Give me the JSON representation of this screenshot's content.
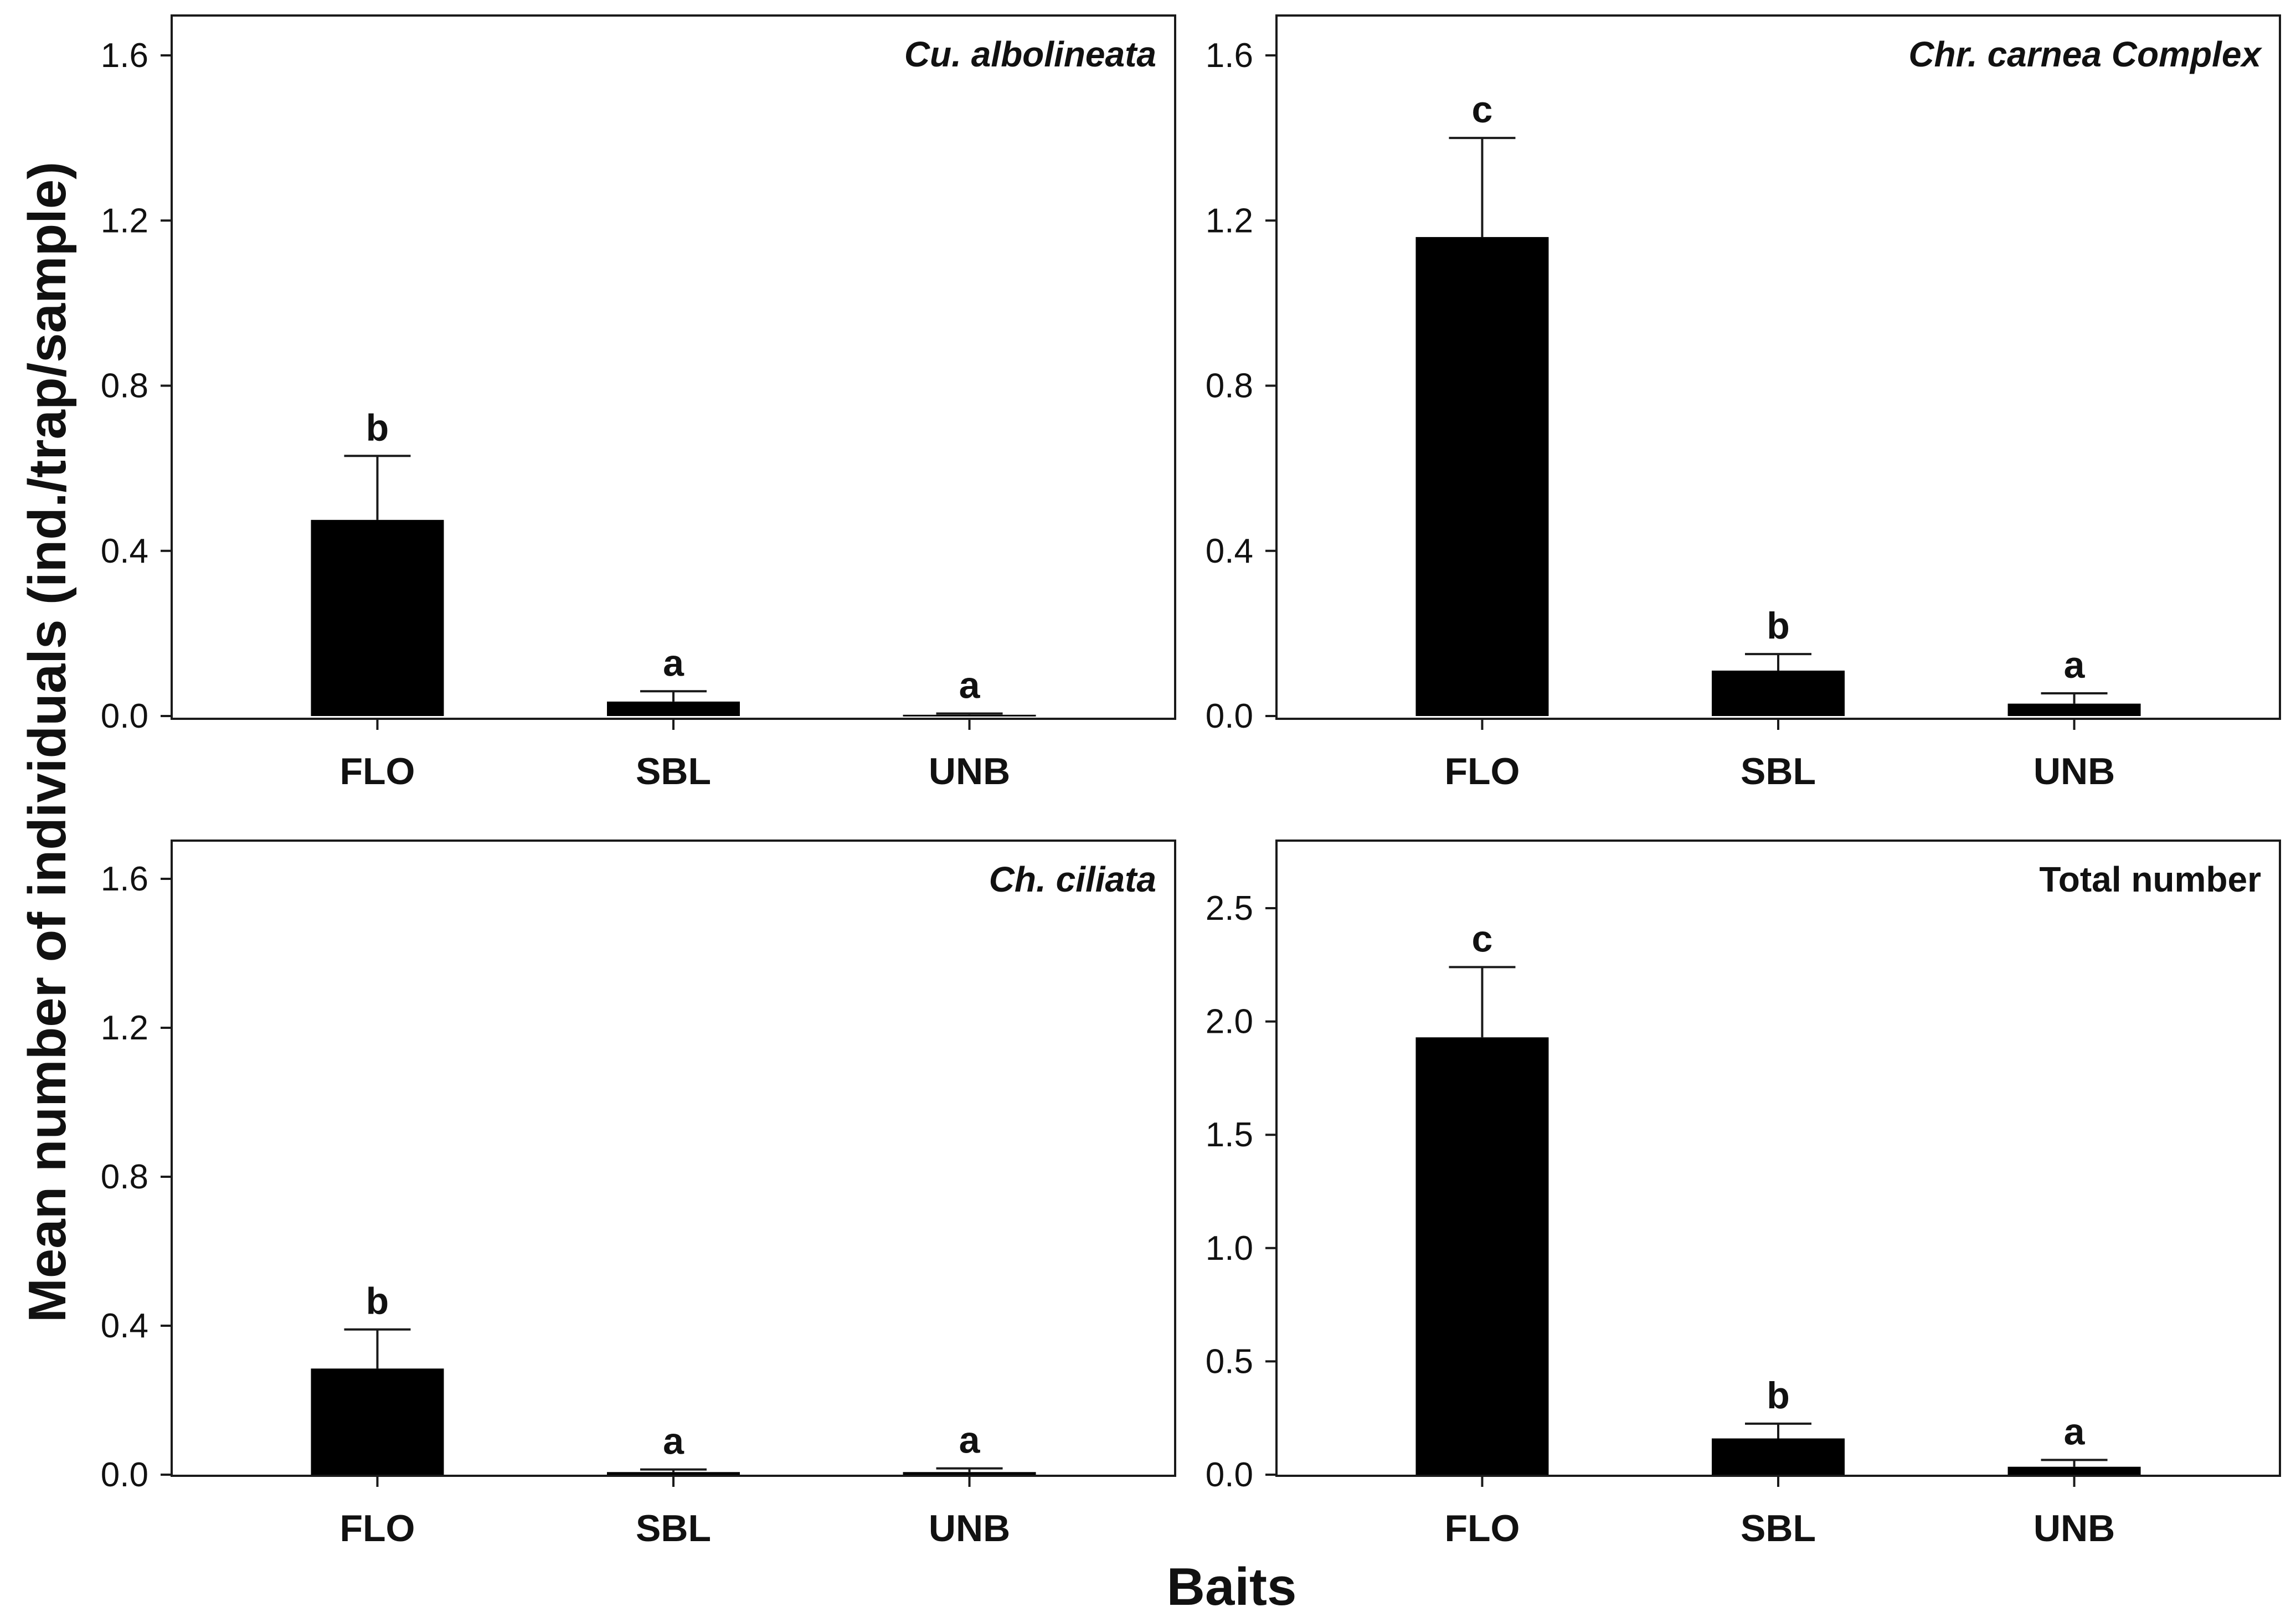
{
  "chart_data": {
    "type": "bar",
    "ylabel": "Mean number of individuals (ind./trap/sample)",
    "xlabel": "Baits",
    "categories": [
      "FLO",
      "SBL",
      "UNB"
    ],
    "colors": {
      "bar": "#000000",
      "axis": "#1a1a1a"
    },
    "panels": [
      {
        "title": "Cu. albolineata",
        "italic": true,
        "ylim": [
          0,
          1.7
        ],
        "yticks": [
          "0.0",
          "0.4",
          "0.8",
          "1.2",
          "1.6"
        ],
        "values": [
          0.475,
          0.035,
          0.003
        ],
        "errors": [
          0.155,
          0.025,
          0.003
        ],
        "letters": [
          "b",
          "a",
          "a"
        ]
      },
      {
        "title": "Chr. carnea Complex",
        "italic": true,
        "ylim": [
          0,
          1.7
        ],
        "yticks": [
          "0.0",
          "0.4",
          "0.8",
          "1.2",
          "1.6"
        ],
        "values": [
          1.16,
          0.11,
          0.03
        ],
        "errors": [
          0.24,
          0.04,
          0.025
        ],
        "letters": [
          "c",
          "b",
          "a"
        ]
      },
      {
        "title": "Ch. ciliata",
        "italic": true,
        "ylim": [
          0,
          1.7
        ],
        "yticks": [
          "0.0",
          "0.4",
          "0.8",
          "1.2",
          "1.6"
        ],
        "values": [
          0.285,
          0.007,
          0.007
        ],
        "errors": [
          0.105,
          0.007,
          0.01
        ],
        "letters": [
          "b",
          "a",
          "a"
        ]
      },
      {
        "title": "Total number",
        "italic": false,
        "ylim": [
          0,
          2.8
        ],
        "yticks": [
          "0.0",
          "0.5",
          "1.0",
          "1.5",
          "2.0",
          "2.5"
        ],
        "values": [
          1.93,
          0.16,
          0.035
        ],
        "errors": [
          0.31,
          0.065,
          0.03
        ],
        "letters": [
          "c",
          "b",
          "a"
        ]
      }
    ]
  }
}
